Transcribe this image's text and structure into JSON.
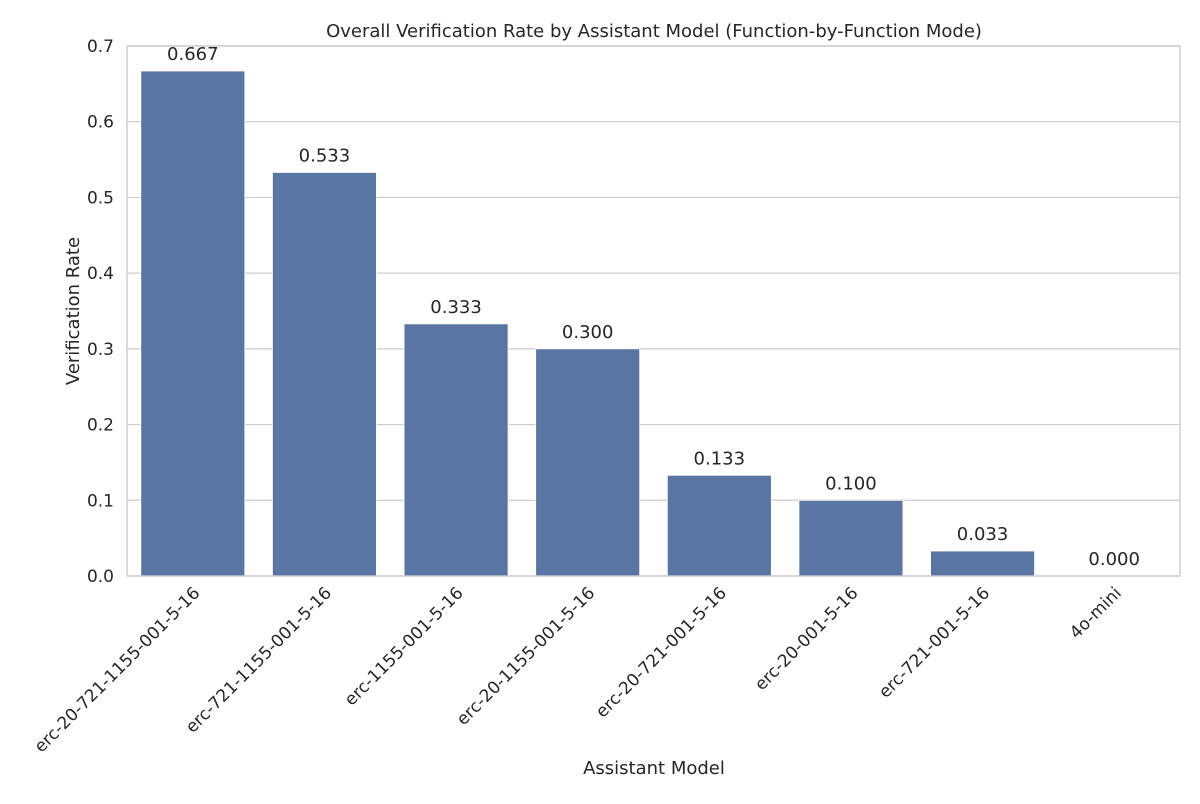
{
  "chart_data": {
    "type": "bar",
    "title": "Overall Verification Rate by Assistant Model (Function-by-Function Mode)",
    "xlabel": "Assistant Model",
    "ylabel": "Verification Rate",
    "categories": [
      "erc-20-721-1155-001-5-16",
      "erc-721-1155-001-5-16",
      "erc-1155-001-5-16",
      "erc-20-1155-001-5-16",
      "erc-20-721-001-5-16",
      "erc-20-001-5-16",
      "erc-721-001-5-16",
      "4o-mini"
    ],
    "values": [
      0.667,
      0.533,
      0.333,
      0.3,
      0.133,
      0.1,
      0.033,
      0.0
    ],
    "value_labels": [
      "0.667",
      "0.533",
      "0.333",
      "0.300",
      "0.133",
      "0.100",
      "0.033",
      "0.000"
    ],
    "ylim": [
      0,
      0.7
    ],
    "yticks": [
      0.0,
      0.1,
      0.2,
      0.3,
      0.4,
      0.5,
      0.6,
      0.7
    ],
    "ytick_labels": [
      "0.0",
      "0.1",
      "0.2",
      "0.3",
      "0.4",
      "0.5",
      "0.6",
      "0.7"
    ],
    "grid": "horizontal",
    "bar_color": "#5975a4",
    "grid_color": "#cccccc",
    "text_color": "#262626",
    "xtick_rotation_deg": 45
  }
}
